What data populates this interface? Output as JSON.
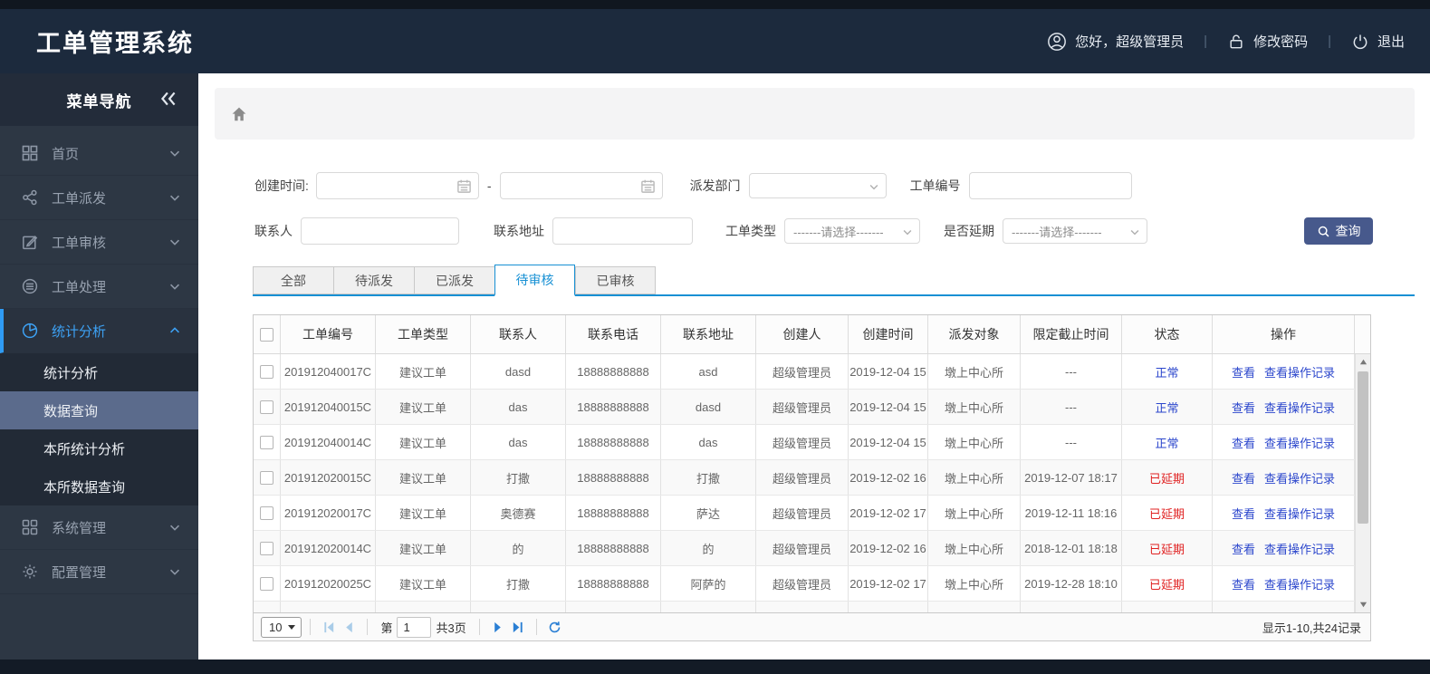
{
  "header": {
    "title": "工单管理系统",
    "user_greeting": "您好，超级管理员",
    "change_password": "修改密码",
    "logout": "退出"
  },
  "sidebar": {
    "title": "菜单导航",
    "items": [
      {
        "label": "首页",
        "icon": "grid-icon",
        "expanded": false
      },
      {
        "label": "工单派发",
        "icon": "share-icon",
        "expanded": false
      },
      {
        "label": "工单审核",
        "icon": "edit-icon",
        "expanded": false
      },
      {
        "label": "工单处理",
        "icon": "process-icon",
        "expanded": false
      },
      {
        "label": "统计分析",
        "icon": "pie-chart-icon",
        "expanded": true,
        "active": true,
        "children": [
          {
            "label": "统计分析",
            "selected": false
          },
          {
            "label": "数据查询",
            "selected": true
          },
          {
            "label": "本所统计分析",
            "selected": false
          },
          {
            "label": "本所数据查询",
            "selected": false
          }
        ]
      },
      {
        "label": "系统管理",
        "icon": "squares-icon",
        "expanded": false
      },
      {
        "label": "配置管理",
        "icon": "gear-icon",
        "expanded": false
      }
    ]
  },
  "filters": {
    "create_time_label": "创建时间:",
    "date_separator": "-",
    "dispatch_dept_label": "派发部门",
    "order_no_label": "工单编号",
    "contact_label": "联系人",
    "address_label": "联系地址",
    "order_type_label": "工单类型",
    "delay_label": "是否延期",
    "select_placeholder": "-------请选择-------",
    "search_button": "查询"
  },
  "tabs": [
    {
      "label": "全部",
      "active": false
    },
    {
      "label": "待派发",
      "active": false
    },
    {
      "label": "已派发",
      "active": false
    },
    {
      "label": "待审核",
      "active": true
    },
    {
      "label": "已审核",
      "active": false
    }
  ],
  "table": {
    "columns": [
      "工单编号",
      "工单类型",
      "联系人",
      "联系电话",
      "联系地址",
      "创建人",
      "创建时间",
      "派发对象",
      "限定截止时间",
      "状态",
      "操作"
    ],
    "action_view": "查看",
    "action_log": "查看操作记录",
    "rows": [
      {
        "order_no": "201912040017C",
        "type": "建议工单",
        "contact": "dasd",
        "phone": "18888888888",
        "address": "asd",
        "creator": "超级管理员",
        "created": "2019-12-04 15",
        "target": "墩上中心所",
        "deadline": "---",
        "status": "正常",
        "status_color": "blue"
      },
      {
        "order_no": "201912040015C",
        "type": "建议工单",
        "contact": "das",
        "phone": "18888888888",
        "address": "dasd",
        "creator": "超级管理员",
        "created": "2019-12-04 15",
        "target": "墩上中心所",
        "deadline": "---",
        "status": "正常",
        "status_color": "blue"
      },
      {
        "order_no": "201912040014C",
        "type": "建议工单",
        "contact": "das",
        "phone": "18888888888",
        "address": "das",
        "creator": "超级管理员",
        "created": "2019-12-04 15",
        "target": "墩上中心所",
        "deadline": "---",
        "status": "正常",
        "status_color": "blue"
      },
      {
        "order_no": "201912020015C",
        "type": "建议工单",
        "contact": "打撒",
        "phone": "18888888888",
        "address": "打撒",
        "creator": "超级管理员",
        "created": "2019-12-02 16",
        "target": "墩上中心所",
        "deadline": "2019-12-07 18:17",
        "status": "已延期",
        "status_color": "red"
      },
      {
        "order_no": "201912020017C",
        "type": "建议工单",
        "contact": "奥德赛",
        "phone": "18888888888",
        "address": "萨达",
        "creator": "超级管理员",
        "created": "2019-12-02 17",
        "target": "墩上中心所",
        "deadline": "2019-12-11 18:16",
        "status": "已延期",
        "status_color": "red"
      },
      {
        "order_no": "201912020014C",
        "type": "建议工单",
        "contact": "的",
        "phone": "18888888888",
        "address": "的",
        "creator": "超级管理员",
        "created": "2019-12-02 16",
        "target": "墩上中心所",
        "deadline": "2018-12-01 18:18",
        "status": "已延期",
        "status_color": "red"
      },
      {
        "order_no": "201912020025C",
        "type": "建议工单",
        "contact": "打撒",
        "phone": "18888888888",
        "address": "阿萨的",
        "creator": "超级管理员",
        "created": "2019-12-02 17",
        "target": "墩上中心所",
        "deadline": "2019-12-28 18:10",
        "status": "已延期",
        "status_color": "red"
      }
    ]
  },
  "pagination": {
    "page_size": "10",
    "page_prefix": "第",
    "current_page": "1",
    "total_pages": "共3页",
    "summary": "显示1-10,共24记录"
  },
  "colors": {
    "header_bg": "#1c2a3d",
    "sidebar_bg": "#2d3744",
    "accent_blue": "#3da2f5",
    "tab_blue": "#1790d4",
    "link_blue": "#2b46cc",
    "danger_red": "#e02121",
    "button_navy": "#47598c",
    "selected_submenu": "#5b6b8c"
  }
}
